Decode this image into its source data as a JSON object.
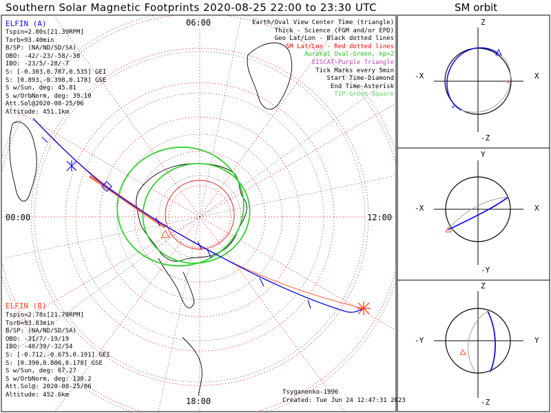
{
  "title": "Southern Solar Magnetic Footprints 2020-08-25 22:00 to 23:30 UTC",
  "sm_orbit_title": "SM orbit",
  "time_labels": {
    "top": "06:00",
    "left": "00:00",
    "right": "12:00",
    "bottom": "18:00"
  },
  "elfin_a": {
    "name": "ELFIN (A)",
    "lines": [
      "Tspin=2.80s[21.39RPM]",
      "Torb=93.40min",
      "B/SP: (NA/ND/SD/SA)",
      "OBO: -42/-23/-58/-38",
      "IBO: -23/5/-28/-7",
      "S: [-0.303,0.787,0.535] GEI",
      "S: [0.893,-0.398,0.178] GSE",
      "S w/Sun, deg: 45.81",
      "S w/OrbNorm, deg: 39.10",
      "Att.Sol@2020-08-25/06",
      "Altitude: 451.1km"
    ],
    "color": "#1010e0"
  },
  "elfin_b": {
    "name": "ELFIN (B)",
    "lines": [
      "Tspin=2.78s[21.70RPM]",
      "Torb=93.83min",
      "B/SP: (NA/ND/SD/SA)",
      "OBO: -31/7/-19/19",
      "IBO: -40/39/-32/54",
      "S: [-0.712,-0.675,0.191] GEI",
      "S: [0.390,0.806,0.178] GSE",
      "S w/Sun, deg: 67.27",
      "S w/OrbNorm, deg: 130.2",
      "Att.Sol@: 2020-08-25/06",
      "Altitude: 452.6km"
    ],
    "color": "#ff6040"
  },
  "legend": [
    {
      "text": "Earth/Oval View Center Time (triangle)",
      "color": "#000000"
    },
    {
      "text": "Thick - Science (FGM and/or EPD)",
      "color": "#000000"
    },
    {
      "text": "Geo Lat/Lon - Black dotted lines",
      "color": "#000000"
    },
    {
      "text": "SM Lat/Lon - Red dotted lines",
      "color": "#ff0000"
    },
    {
      "text": "Auroral Oval-Green, kp=2",
      "color": "#20c020"
    },
    {
      "text": "EISCAT-Purple Triangle",
      "color": "#c040c0"
    },
    {
      "text": "Tick Marks every 5min",
      "color": "#000000"
    },
    {
      "text": "Start Time-Diamond",
      "color": "#000000"
    },
    {
      "text": "End Time-Asterisk",
      "color": "#000000"
    },
    {
      "text": "TIP-Green Square",
      "color": "#60d060"
    }
  ],
  "credits": {
    "author": "Tsyganenko-1996",
    "created": "Created: Tue Jun 24 12:47:31 2023"
  },
  "orbit_panels": [
    {
      "top": "Z",
      "bottom": "-Z",
      "left": "-X",
      "right": "X"
    },
    {
      "top": "Y",
      "bottom": "-Y",
      "left": "-X",
      "right": "X"
    },
    {
      "top": "Z",
      "bottom": "-Z",
      "left": "-Y",
      "right": "Y"
    }
  ]
}
